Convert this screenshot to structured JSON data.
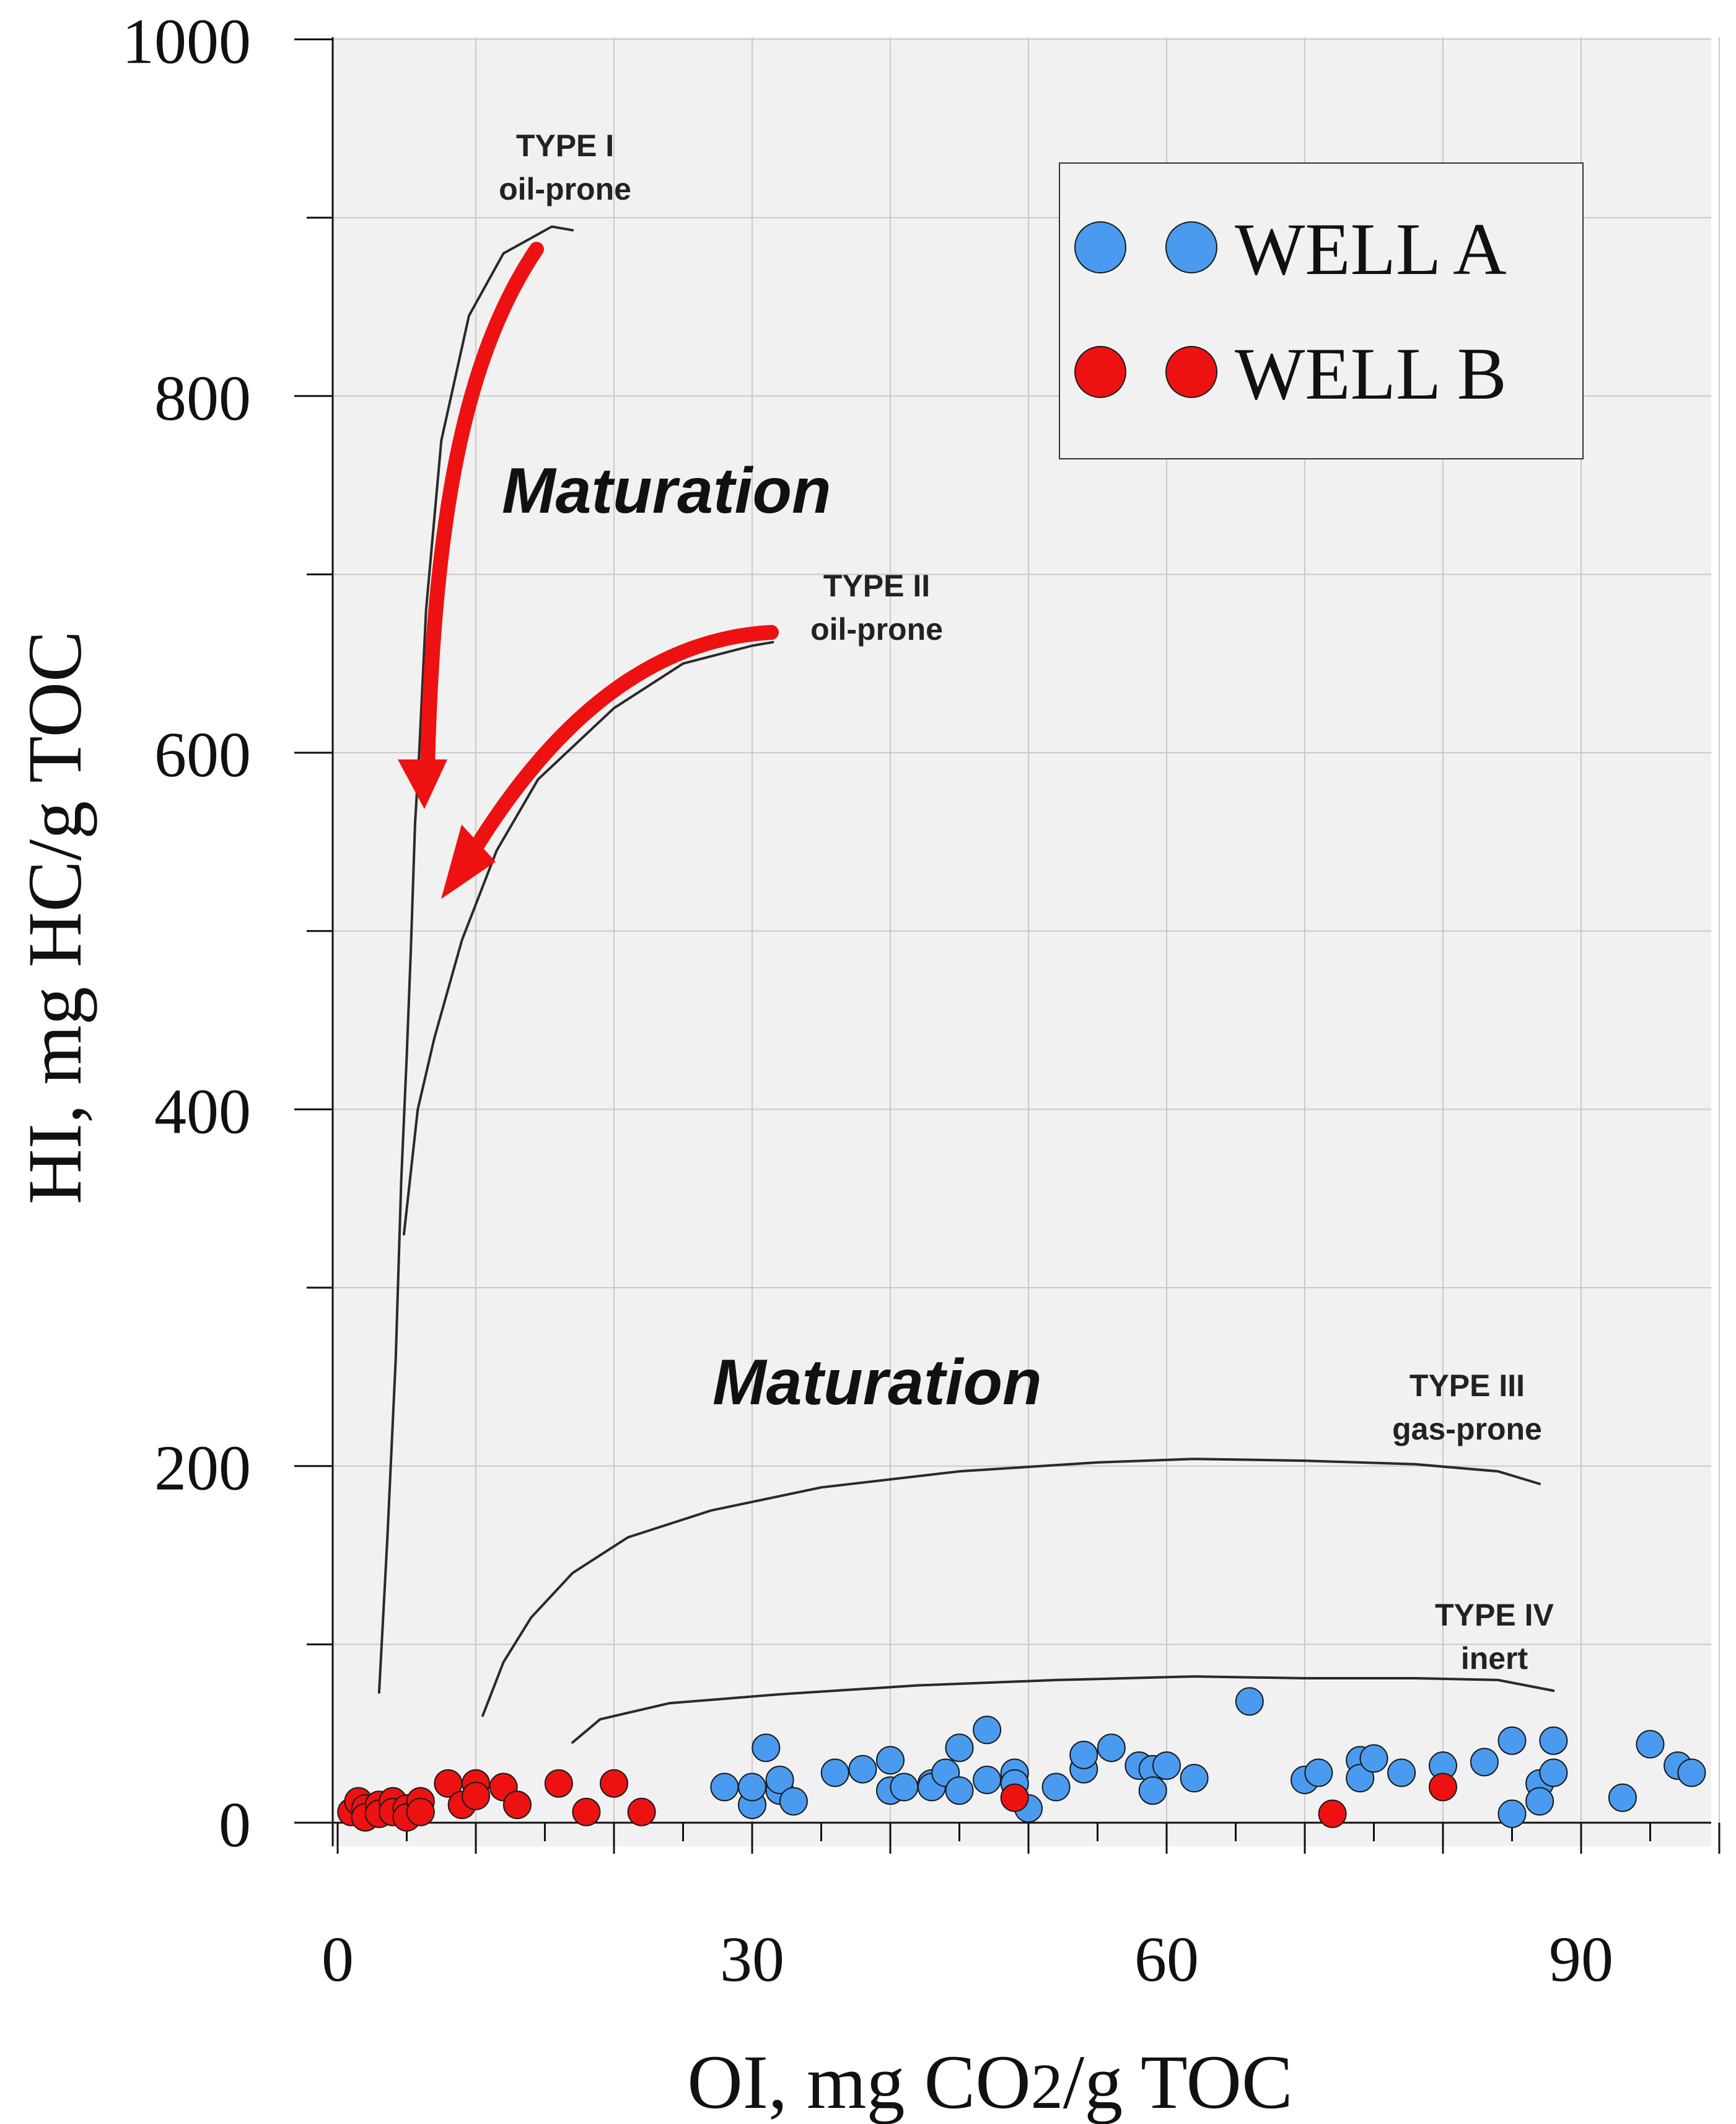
{
  "chart_data": {
    "type": "scatter",
    "xlabel": "OI, mg CO",
    "xlabel_sub": "2",
    "xlabel_end": "/g TOC",
    "ylabel": "HI, mg HC/g TOC",
    "xlim": [
      0,
      100
    ],
    "ylim": [
      0,
      1000
    ],
    "x_ticks": [
      0,
      30,
      60,
      90
    ],
    "y_ticks": [
      0,
      200,
      400,
      600,
      800,
      1000
    ],
    "grid": true,
    "legend_position": "top-right",
    "series": [
      {
        "name": "WELL A",
        "color": "#4a9bf0",
        "points": [
          [
            28,
            20
          ],
          [
            30,
            10
          ],
          [
            30,
            20
          ],
          [
            31,
            42
          ],
          [
            32,
            18
          ],
          [
            32,
            24
          ],
          [
            33,
            12
          ],
          [
            36,
            28
          ],
          [
            38,
            30
          ],
          [
            40,
            18
          ],
          [
            40,
            35
          ],
          [
            41,
            20
          ],
          [
            43,
            22
          ],
          [
            43,
            20
          ],
          [
            44,
            28
          ],
          [
            45,
            18
          ],
          [
            45,
            42
          ],
          [
            47,
            52
          ],
          [
            47,
            24
          ],
          [
            49,
            28
          ],
          [
            49,
            22
          ],
          [
            50,
            8
          ],
          [
            52,
            20
          ],
          [
            54,
            30
          ],
          [
            54,
            38
          ],
          [
            56,
            42
          ],
          [
            58,
            32
          ],
          [
            59,
            30
          ],
          [
            59,
            18
          ],
          [
            60,
            32
          ],
          [
            62,
            25
          ],
          [
            66,
            68
          ],
          [
            70,
            24
          ],
          [
            71,
            28
          ],
          [
            74,
            35
          ],
          [
            74,
            25
          ],
          [
            75,
            36
          ],
          [
            77,
            28
          ],
          [
            80,
            32
          ],
          [
            83,
            34
          ],
          [
            85,
            46
          ],
          [
            85,
            5
          ],
          [
            87,
            22
          ],
          [
            87,
            12
          ],
          [
            88,
            46
          ],
          [
            88,
            28
          ],
          [
            93,
            14
          ],
          [
            95,
            44
          ],
          [
            97,
            32
          ],
          [
            98,
            28
          ]
        ]
      },
      {
        "name": "WELL B",
        "color": "#ee1111",
        "points": [
          [
            1,
            6
          ],
          [
            1.5,
            12
          ],
          [
            2,
            8
          ],
          [
            2,
            3
          ],
          [
            3,
            10
          ],
          [
            3,
            5
          ],
          [
            4,
            12
          ],
          [
            4,
            6
          ],
          [
            5,
            8
          ],
          [
            5,
            3
          ],
          [
            6,
            12
          ],
          [
            6,
            6
          ],
          [
            8,
            22
          ],
          [
            9,
            10
          ],
          [
            10,
            22
          ],
          [
            10,
            15
          ],
          [
            12,
            20
          ],
          [
            13,
            10
          ],
          [
            16,
            22
          ],
          [
            18,
            6
          ],
          [
            20,
            22
          ],
          [
            22,
            6
          ],
          [
            49,
            14
          ],
          [
            72,
            5
          ],
          [
            80,
            20
          ]
        ]
      }
    ],
    "curves": [
      {
        "label": "TYPE I",
        "label2": "oil-prone",
        "points": [
          [
            3,
            73
          ],
          [
            3.6,
            160
          ],
          [
            4.2,
            260
          ],
          [
            4.6,
            360
          ],
          [
            5,
            430
          ],
          [
            5.3,
            490
          ],
          [
            5.6,
            560
          ],
          [
            5.9,
            600
          ],
          [
            6.4,
            680
          ],
          [
            7.5,
            775
          ],
          [
            9.5,
            845
          ],
          [
            12,
            880
          ],
          [
            15.5,
            895
          ],
          [
            17,
            893
          ]
        ]
      },
      {
        "label": "TYPE II",
        "label2": "oil-prone",
        "points": [
          [
            4.8,
            330
          ],
          [
            5.8,
            400
          ],
          [
            7,
            440
          ],
          [
            9,
            495
          ],
          [
            11.5,
            545
          ],
          [
            14.5,
            585
          ],
          [
            20,
            625
          ],
          [
            25,
            650
          ],
          [
            30,
            660
          ],
          [
            31.5,
            662
          ]
        ]
      },
      {
        "label": "TYPE III",
        "label2": "gas-prone",
        "points": [
          [
            10.5,
            60
          ],
          [
            12,
            90
          ],
          [
            14,
            115
          ],
          [
            17,
            140
          ],
          [
            21,
            160
          ],
          [
            27,
            175
          ],
          [
            35,
            188
          ],
          [
            45,
            197
          ],
          [
            55,
            202
          ],
          [
            62,
            204
          ],
          [
            70,
            203
          ],
          [
            78,
            201
          ],
          [
            84,
            197
          ],
          [
            87,
            190
          ]
        ]
      },
      {
        "label": "TYPE IV",
        "label2": "inert",
        "points": [
          [
            17,
            45
          ],
          [
            19,
            58
          ],
          [
            24,
            67
          ],
          [
            32,
            72
          ],
          [
            42,
            77
          ],
          [
            52,
            80
          ],
          [
            62,
            82
          ],
          [
            70,
            81
          ],
          [
            78,
            81
          ],
          [
            84,
            80
          ],
          [
            88,
            74
          ]
        ]
      }
    ],
    "annotations": [
      "Maturation",
      "Maturation"
    ],
    "colors": {
      "arrow": "#ee1111",
      "plot_bg": "#f1f1f1",
      "grid": "#c9c9c9"
    }
  }
}
